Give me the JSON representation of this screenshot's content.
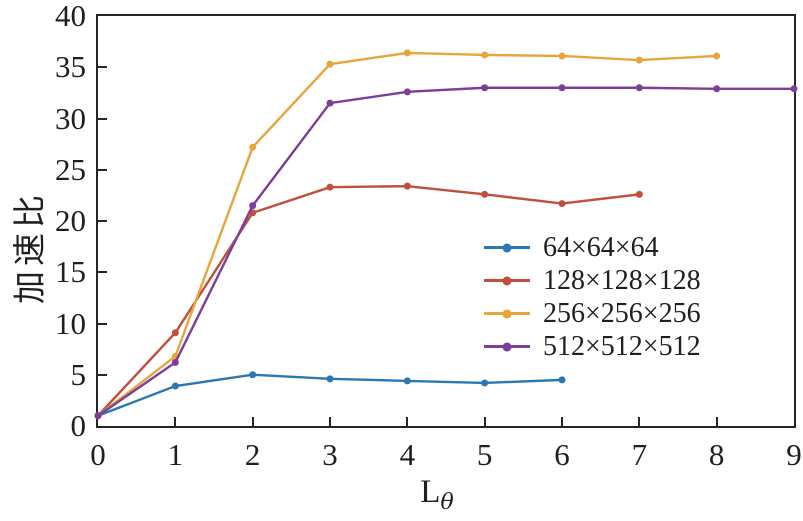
{
  "chart_data": {
    "type": "line",
    "title": "",
    "ylabel": "加速比",
    "xlabel_base": "L",
    "xlabel_sub": "θ",
    "xlim": [
      0,
      9
    ],
    "ylim": [
      0,
      40
    ],
    "xticks": [
      0,
      1,
      2,
      3,
      4,
      5,
      6,
      7,
      8,
      9
    ],
    "yticks": [
      0,
      5,
      10,
      15,
      20,
      25,
      30,
      35,
      40
    ],
    "grid": false,
    "legend_position": "center-right",
    "legend_frame": false,
    "axis_color": "#252525",
    "text_color": "#1f1f1f",
    "series": [
      {
        "name": "64×64×64",
        "color": "#2878B5",
        "x": [
          0,
          1,
          2,
          3,
          4,
          5,
          6
        ],
        "values": [
          1.0,
          3.9,
          5.0,
          4.6,
          4.4,
          4.2,
          4.5
        ]
      },
      {
        "name": "128×128×128",
        "color": "#C04F3C",
        "x": [
          0,
          1,
          2,
          3,
          4,
          5,
          6,
          7
        ],
        "values": [
          1.0,
          9.1,
          20.8,
          23.3,
          23.4,
          22.6,
          21.7,
          22.6
        ]
      },
      {
        "name": "256×256×256",
        "color": "#E8A53C",
        "x": [
          0,
          1,
          2,
          3,
          4,
          5,
          6,
          7,
          8
        ],
        "values": [
          1.0,
          6.8,
          27.2,
          35.3,
          36.4,
          36.2,
          36.1,
          35.7,
          36.1
        ]
      },
      {
        "name": "512×512×512",
        "color": "#7B3F9B",
        "x": [
          0,
          1,
          2,
          3,
          4,
          5,
          6,
          7,
          8,
          9
        ],
        "values": [
          1.0,
          6.2,
          21.5,
          31.5,
          32.6,
          33.0,
          33.0,
          33.0,
          32.9,
          32.9
        ]
      }
    ]
  }
}
